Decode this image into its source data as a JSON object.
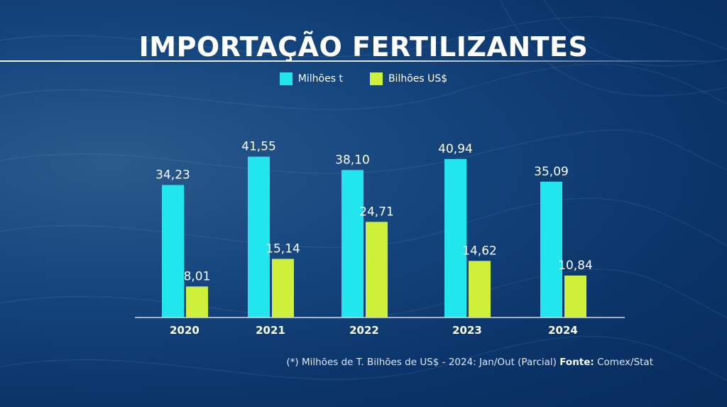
{
  "title": "IMPORTAÇÃO FERTILIZANTES",
  "legend": [
    {
      "label": "Milhões t",
      "color": "#22e6ee"
    },
    {
      "label": "Bilhões US$",
      "color": "#cef03a"
    }
  ],
  "footnote": {
    "text": "(*) Milhões de T. Bilhões de US$ - 2024: Jan/Out (Parcial)",
    "source_label": "Fonte:",
    "source": "Comex/Stat"
  },
  "chart_data": {
    "type": "bar",
    "title": "IMPORTAÇÃO FERTILIZANTES",
    "categories": [
      "2020",
      "2021",
      "2022",
      "2023",
      "2024"
    ],
    "series": [
      {
        "name": "Milhões t",
        "values": [
          34.23,
          41.55,
          38.1,
          40.94,
          35.09
        ],
        "labels": [
          "34,23",
          "41,55",
          "38,10",
          "40,94",
          "35,09"
        ],
        "color": "#22e6ee"
      },
      {
        "name": "Bilhões US$",
        "values": [
          8.01,
          15.14,
          24.71,
          14.62,
          10.84
        ],
        "labels": [
          "8,01",
          "15,14",
          "24,71",
          "14,62",
          "10,84"
        ],
        "color": "#cef03a"
      }
    ],
    "xlabel": "",
    "ylabel": "",
    "grid": false,
    "legend_position": "top-center"
  }
}
